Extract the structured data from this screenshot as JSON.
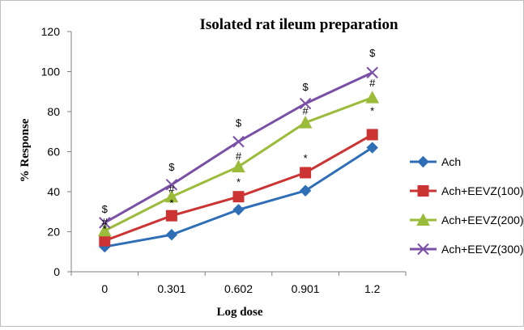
{
  "chart_data": {
    "type": "line",
    "title": "Isolated rat ileum preparation",
    "xlabel": "Log dose",
    "ylabel": "% Response",
    "categories": [
      "0",
      "0.301",
      "0.602",
      "0.901",
      "1.2"
    ],
    "ylim": [
      0,
      120
    ],
    "yticks": [
      0,
      20,
      40,
      60,
      80,
      100,
      120
    ],
    "grid": false,
    "legend_position": "right",
    "series": [
      {
        "name": "Ach",
        "values": [
          12.5,
          18.5,
          31,
          40.5,
          62
        ],
        "color": "#2e6eb6",
        "marker": "diamond"
      },
      {
        "name": "Ach+EEVZ(100)",
        "values": [
          15.5,
          28,
          37.5,
          49.5,
          68.5
        ],
        "color": "#cc3333",
        "marker": "square"
      },
      {
        "name": "Ach+EEVZ(200)",
        "values": [
          20.5,
          37.5,
          52.5,
          74.5,
          87
        ],
        "color": "#9bbb3a",
        "marker": "triangle"
      },
      {
        "name": "Ach+EEVZ(300)",
        "values": [
          24.5,
          43.5,
          65,
          84,
          99.5
        ],
        "color": "#7a4fa6",
        "marker": "x"
      }
    ],
    "annotations": [
      {
        "x_index": 0,
        "y": 29.5,
        "text": "$"
      },
      {
        "x_index": 0,
        "y": 23,
        "text": "#"
      },
      {
        "x_index": 0,
        "y": 19.5,
        "text": "*"
      },
      {
        "x_index": 1,
        "y": 50.5,
        "text": "$"
      },
      {
        "x_index": 1,
        "y": 39.5,
        "text": "#"
      },
      {
        "x_index": 1,
        "y": 32.5,
        "text": "*"
      },
      {
        "x_index": 2,
        "y": 72.5,
        "text": "$"
      },
      {
        "x_index": 2,
        "y": 56,
        "text": "#"
      },
      {
        "x_index": 2,
        "y": 43,
        "text": "*"
      },
      {
        "x_index": 3,
        "y": 90.5,
        "text": "$"
      },
      {
        "x_index": 3,
        "y": 78.5,
        "text": "#"
      },
      {
        "x_index": 3,
        "y": 55,
        "text": "*"
      },
      {
        "x_index": 4,
        "y": 107.5,
        "text": "$"
      },
      {
        "x_index": 4,
        "y": 92.5,
        "text": "#"
      },
      {
        "x_index": 4,
        "y": 78.5,
        "text": "*"
      }
    ]
  }
}
